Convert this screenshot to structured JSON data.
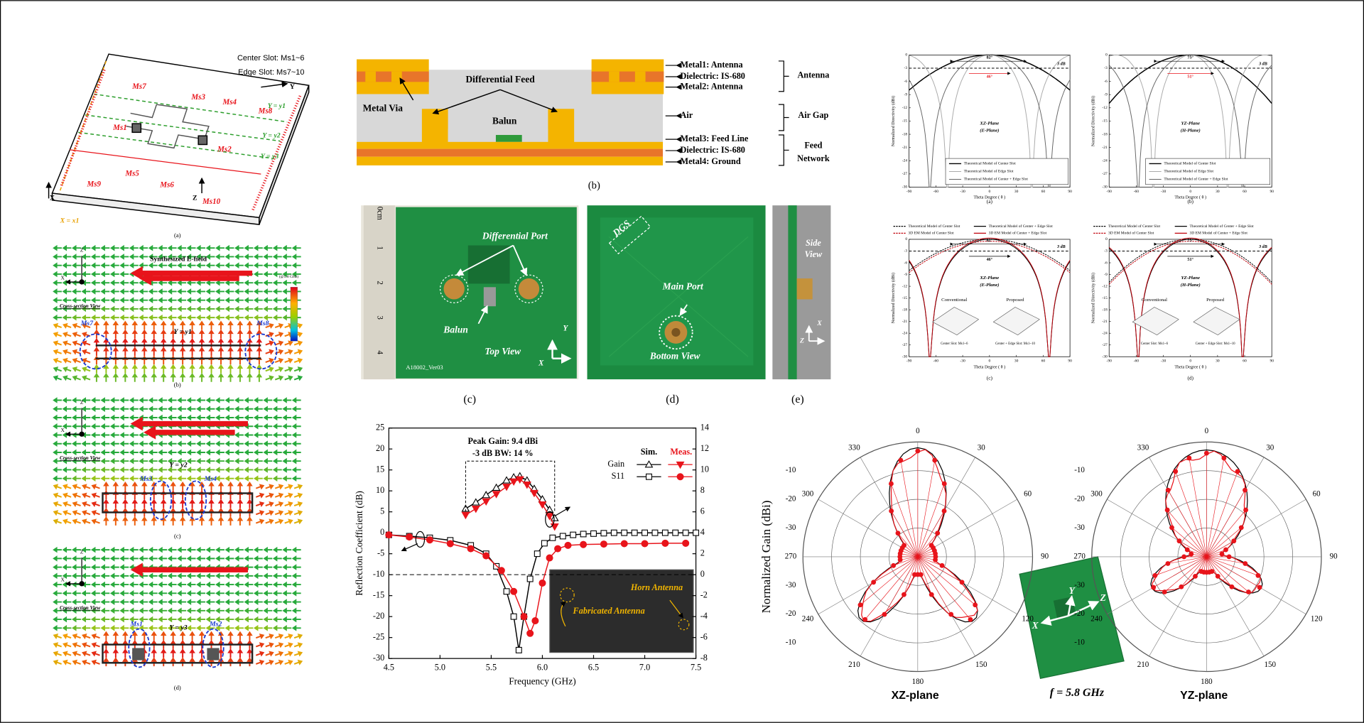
{
  "fig_a": {
    "center_slot": "Center Slot: Ms1~6",
    "edge_slot": "Edge Slot: Ms7~10",
    "slots": [
      "Ms7",
      "Ms3",
      "Ms4",
      "Ms8",
      "Ms1",
      "Ms2",
      "Ms9",
      "Ms5",
      "Ms6",
      "Ms10"
    ],
    "lines": [
      "Y = y1",
      "Y = y2",
      "Y = y3",
      "X = x1"
    ],
    "axes": [
      "X",
      "Y",
      "Z"
    ],
    "caption": "(a)"
  },
  "field_b": {
    "title": "Synthesized E-field",
    "note": "(@5.8 GHz)",
    "view": "Cross-section View",
    "line": "Y = y1",
    "slots": [
      "Ms7",
      "Ms8"
    ],
    "axes": [
      "Z",
      "X"
    ],
    "caption": "(b)"
  },
  "field_c": {
    "view": "Cross-section View",
    "line": "Y = y2",
    "slots": [
      "Ms3",
      "Ms4"
    ],
    "axes": [
      "Z",
      "X"
    ],
    "caption": "(c)"
  },
  "field_d": {
    "view": "Cross-section View",
    "line": "Y = y3",
    "slots": [
      "Ms1",
      "Ms2"
    ],
    "axes": [
      "Z",
      "X"
    ],
    "caption": "(d)"
  },
  "stack": {
    "layers": [
      "Metal1: Antenna",
      "Dielectric: IS-680",
      "Metal2: Antenna",
      "Air",
      "Metal3: Feed Line",
      "Dielectric: IS-680",
      "Metal4: Ground"
    ],
    "groups": [
      "Antenna",
      "Air Gap"
    ],
    "feed_network": [
      "Feed",
      "Network"
    ],
    "callouts": [
      "Differential Feed",
      "Metal Via",
      "Balun"
    ],
    "caption": "(b)"
  },
  "photos": {
    "top": {
      "labels": [
        "Differential Port",
        "Balun",
        "Top View",
        "A18002_Ver03"
      ],
      "ruler": [
        "0cm",
        "1",
        "2",
        "3",
        "4"
      ],
      "axes": [
        "Y",
        "X"
      ],
      "caption": "(c)"
    },
    "bottom": {
      "labels": [
        "DGS",
        "Main Port",
        "Bottom View"
      ],
      "caption": "(d)"
    },
    "side": {
      "labels": [
        "Side",
        "View"
      ],
      "axes": [
        "X",
        "Z"
      ],
      "caption": "(e)"
    }
  },
  "directivity": {
    "ylabel": "Normalized Directivity (dBi)",
    "xlabel": "Theta Degree ( θ )",
    "db3": "3 dB",
    "ylim": [
      -30,
      0
    ],
    "yticks": [
      0,
      -3,
      -6,
      -9,
      -12,
      -15,
      -18,
      -21,
      -24,
      -27,
      -30
    ],
    "xlim": [
      -90,
      90
    ],
    "xticks": [
      -90,
      -60,
      -30,
      0,
      30,
      60,
      90
    ],
    "legend_ab": [
      "Theoretical Model of Center Slot",
      "Theoretical Model of Edge Slot",
      "Theoretical Model of Center + Edge Slot"
    ],
    "legend_cd": [
      "Theoretical Model of Center Slot",
      "Theoretical Model of Center + Edge Slot",
      "3D EM Model of Center Slot",
      "3D EM Model of Center + Edge Slot"
    ],
    "insets": [
      "Conventional",
      "Proposed",
      "Center Slot: Ms1~6",
      "Center + Edge Slot: Ms1~10"
    ],
    "plots": [
      {
        "plane": "XZ-Plane",
        "sub": "(E-Plane)",
        "outer": "82°",
        "inner": "46°",
        "caption": "(a)"
      },
      {
        "plane": "YZ-Plane",
        "sub": "(H-Plane)",
        "outer": "75°",
        "inner": "51°",
        "caption": "(b)"
      },
      {
        "plane": "XZ-Plane",
        "sub": "(E-Plane)",
        "outer": "82°",
        "inner": "46°",
        "caption": "(c)"
      },
      {
        "plane": "YZ-Plane",
        "sub": "(H-Plane)",
        "outer": "75°",
        "inner": "51°",
        "caption": "(d)"
      }
    ]
  },
  "chart_data": {
    "type": "line",
    "xlabel": "Frequency (GHz)",
    "ylabel": "Reflection Coefficient (dB)",
    "xlim": [
      4.5,
      7.5
    ],
    "xticks": [
      4.5,
      {
        "value": 5,
        "label": "5.0"
      },
      5.5,
      {
        "value": 6,
        "label": "6.0"
      },
      6.5,
      {
        "value": 7,
        "label": "7.0"
      },
      7.5
    ],
    "ylim": [
      -30,
      25
    ],
    "yticks": [
      -30,
      -25,
      -20,
      -15,
      -10,
      -5,
      0,
      5,
      10,
      15,
      20,
      25
    ],
    "y2lim": [
      -8,
      14
    ],
    "y2ticks": [
      -8,
      -6,
      -4,
      -2,
      0,
      2,
      4,
      6,
      8,
      10,
      12,
      14
    ],
    "legend_columns": [
      "Sim.",
      "Meas."
    ],
    "series": [
      {
        "name": "Gain",
        "axis": "y2",
        "sim": {
          "color": "#000000",
          "x": [
            5.25,
            5.35,
            5.45,
            5.55,
            5.65,
            5.72,
            5.78,
            5.85,
            5.92,
            6.0,
            6.07,
            6.12
          ],
          "values": [
            6.3,
            6.9,
            7.6,
            8.3,
            9.0,
            9.3,
            9.4,
            9.0,
            8.2,
            7.2,
            6.2,
            5.4
          ]
        },
        "meas": {
          "color": "#e8141b",
          "x": [
            5.25,
            5.35,
            5.45,
            5.55,
            5.65,
            5.72,
            5.78,
            5.85,
            5.92,
            6.0,
            6.07,
            6.12
          ],
          "values": [
            5.7,
            6.3,
            7.0,
            7.7,
            8.4,
            8.9,
            9.1,
            8.6,
            7.8,
            6.7,
            5.6,
            4.6
          ]
        }
      },
      {
        "name": "S11",
        "axis": "y",
        "sim": {
          "color": "#000000",
          "x": [
            4.5,
            4.7,
            4.9,
            5.1,
            5.3,
            5.45,
            5.55,
            5.65,
            5.72,
            5.77,
            5.82,
            5.88,
            5.95,
            6.02,
            6.1,
            6.2,
            6.3,
            6.4,
            6.5,
            6.6,
            6.7,
            6.8,
            6.9,
            7.0,
            7.1,
            7.2,
            7.3,
            7.4,
            7.5
          ],
          "values": [
            -0.5,
            -0.8,
            -1.2,
            -1.8,
            -3,
            -5,
            -8,
            -14,
            -20,
            -28,
            -20,
            -11,
            -5,
            -2.5,
            -1.2,
            -0.8,
            -0.5,
            -0.3,
            -0.2,
            -0.1,
            0,
            0,
            0,
            0,
            0,
            0,
            0,
            0,
            0
          ]
        },
        "meas": {
          "color": "#e8141b",
          "x": [
            4.5,
            4.7,
            4.9,
            5.1,
            5.3,
            5.45,
            5.6,
            5.72,
            5.82,
            5.88,
            5.93,
            6.0,
            6.07,
            6.15,
            6.25,
            6.4,
            6.6,
            6.8,
            7.0,
            7.2,
            7.4
          ],
          "values": [
            -0.5,
            -1,
            -1.7,
            -2.6,
            -3.8,
            -5.5,
            -9,
            -14,
            -20,
            -24,
            -21,
            -12,
            -6,
            -3.8,
            -3,
            -2.8,
            -2.7,
            -2.6,
            -2.6,
            -2.5,
            -2.5
          ]
        }
      }
    ],
    "reference_line": -10,
    "annotations": [
      "Peak Gain: 9.4 dBi",
      "-3 dB BW: 14 %"
    ],
    "inset_labels": [
      "Horn Antenna",
      "Fabricated Antenna"
    ]
  },
  "polar": {
    "ylabel": "Normalized Gain (dBi)",
    "angles": [
      0,
      30,
      60,
      90,
      120,
      150,
      180,
      210,
      240,
      270,
      300,
      330
    ],
    "radial_labels": [
      -10,
      -20,
      -30,
      -30,
      -20,
      -10
    ],
    "planes": [
      "XZ-plane",
      "YZ-plane"
    ],
    "freq": "f = 5.8 GHz",
    "axes": [
      "Y",
      "Z",
      "X"
    ]
  }
}
